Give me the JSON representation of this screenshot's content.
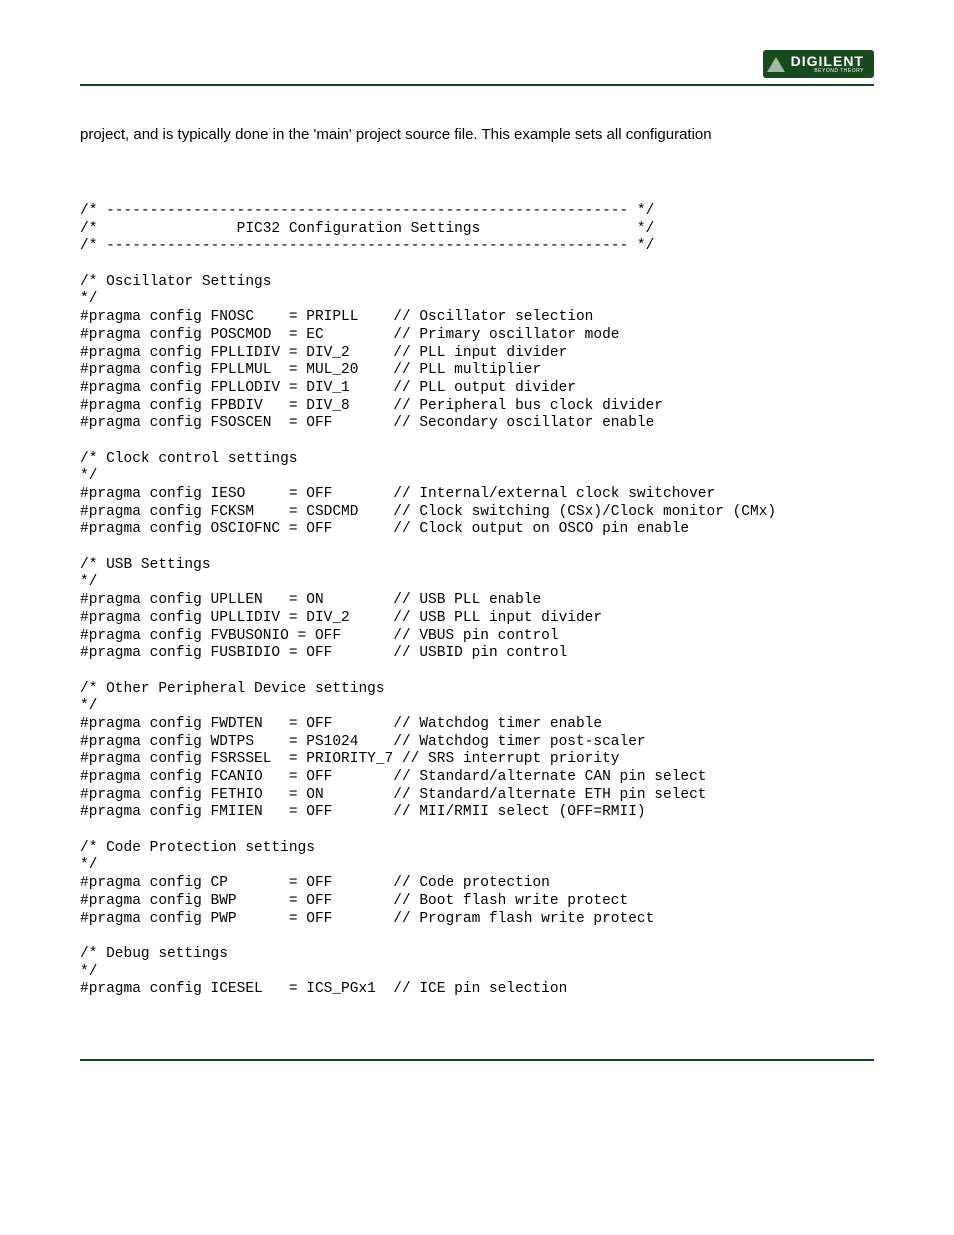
{
  "brand": {
    "name": "DIGILENT",
    "tagline": "BEYOND THEORY",
    "accent_color": "#184a1e",
    "logo_bg": "#184a1e",
    "logo_text_color": "#ffffff"
  },
  "intro_text": "project, and is typically done in the 'main' project source file. This example sets all configuration",
  "code_lines": [
    "/* ------------------------------------------------------------ */",
    "/*                PIC32 Configuration Settings                  */",
    "/* ------------------------------------------------------------ */",
    "",
    "/* Oscillator Settings",
    "*/",
    "#pragma config FNOSC    = PRIPLL    // Oscillator selection",
    "#pragma config POSCMOD  = EC        // Primary oscillator mode",
    "#pragma config FPLLIDIV = DIV_2     // PLL input divider",
    "#pragma config FPLLMUL  = MUL_20    // PLL multiplier",
    "#pragma config FPLLODIV = DIV_1     // PLL output divider",
    "#pragma config FPBDIV   = DIV_8     // Peripheral bus clock divider",
    "#pragma config FSOSCEN  = OFF       // Secondary oscillator enable",
    "",
    "/* Clock control settings",
    "*/",
    "#pragma config IESO     = OFF       // Internal/external clock switchover",
    "#pragma config FCKSM    = CSDCMD    // Clock switching (CSx)/Clock monitor (CMx)",
    "#pragma config OSCIOFNC = OFF       // Clock output on OSCO pin enable",
    "",
    "/* USB Settings",
    "*/",
    "#pragma config UPLLEN   = ON        // USB PLL enable",
    "#pragma config UPLLIDIV = DIV_2     // USB PLL input divider",
    "#pragma config FVBUSONIO = OFF      // VBUS pin control",
    "#pragma config FUSBIDIO = OFF       // USBID pin control",
    "",
    "/* Other Peripheral Device settings",
    "*/",
    "#pragma config FWDTEN   = OFF       // Watchdog timer enable",
    "#pragma config WDTPS    = PS1024    // Watchdog timer post-scaler",
    "#pragma config FSRSSEL  = PRIORITY_7 // SRS interrupt priority",
    "#pragma config FCANIO   = OFF       // Standard/alternate CAN pin select",
    "#pragma config FETHIO   = ON        // Standard/alternate ETH pin select",
    "#pragma config FMIIEN   = OFF       // MII/RMII select (OFF=RMII)",
    "",
    "/* Code Protection settings",
    "*/",
    "#pragma config CP       = OFF       // Code protection",
    "#pragma config BWP      = OFF       // Boot flash write protect",
    "#pragma config PWP      = OFF       // Program flash write protect",
    "",
    "/* Debug settings",
    "*/",
    "#pragma config ICESEL   = ICS_PGx1  // ICE pin selection"
  ]
}
